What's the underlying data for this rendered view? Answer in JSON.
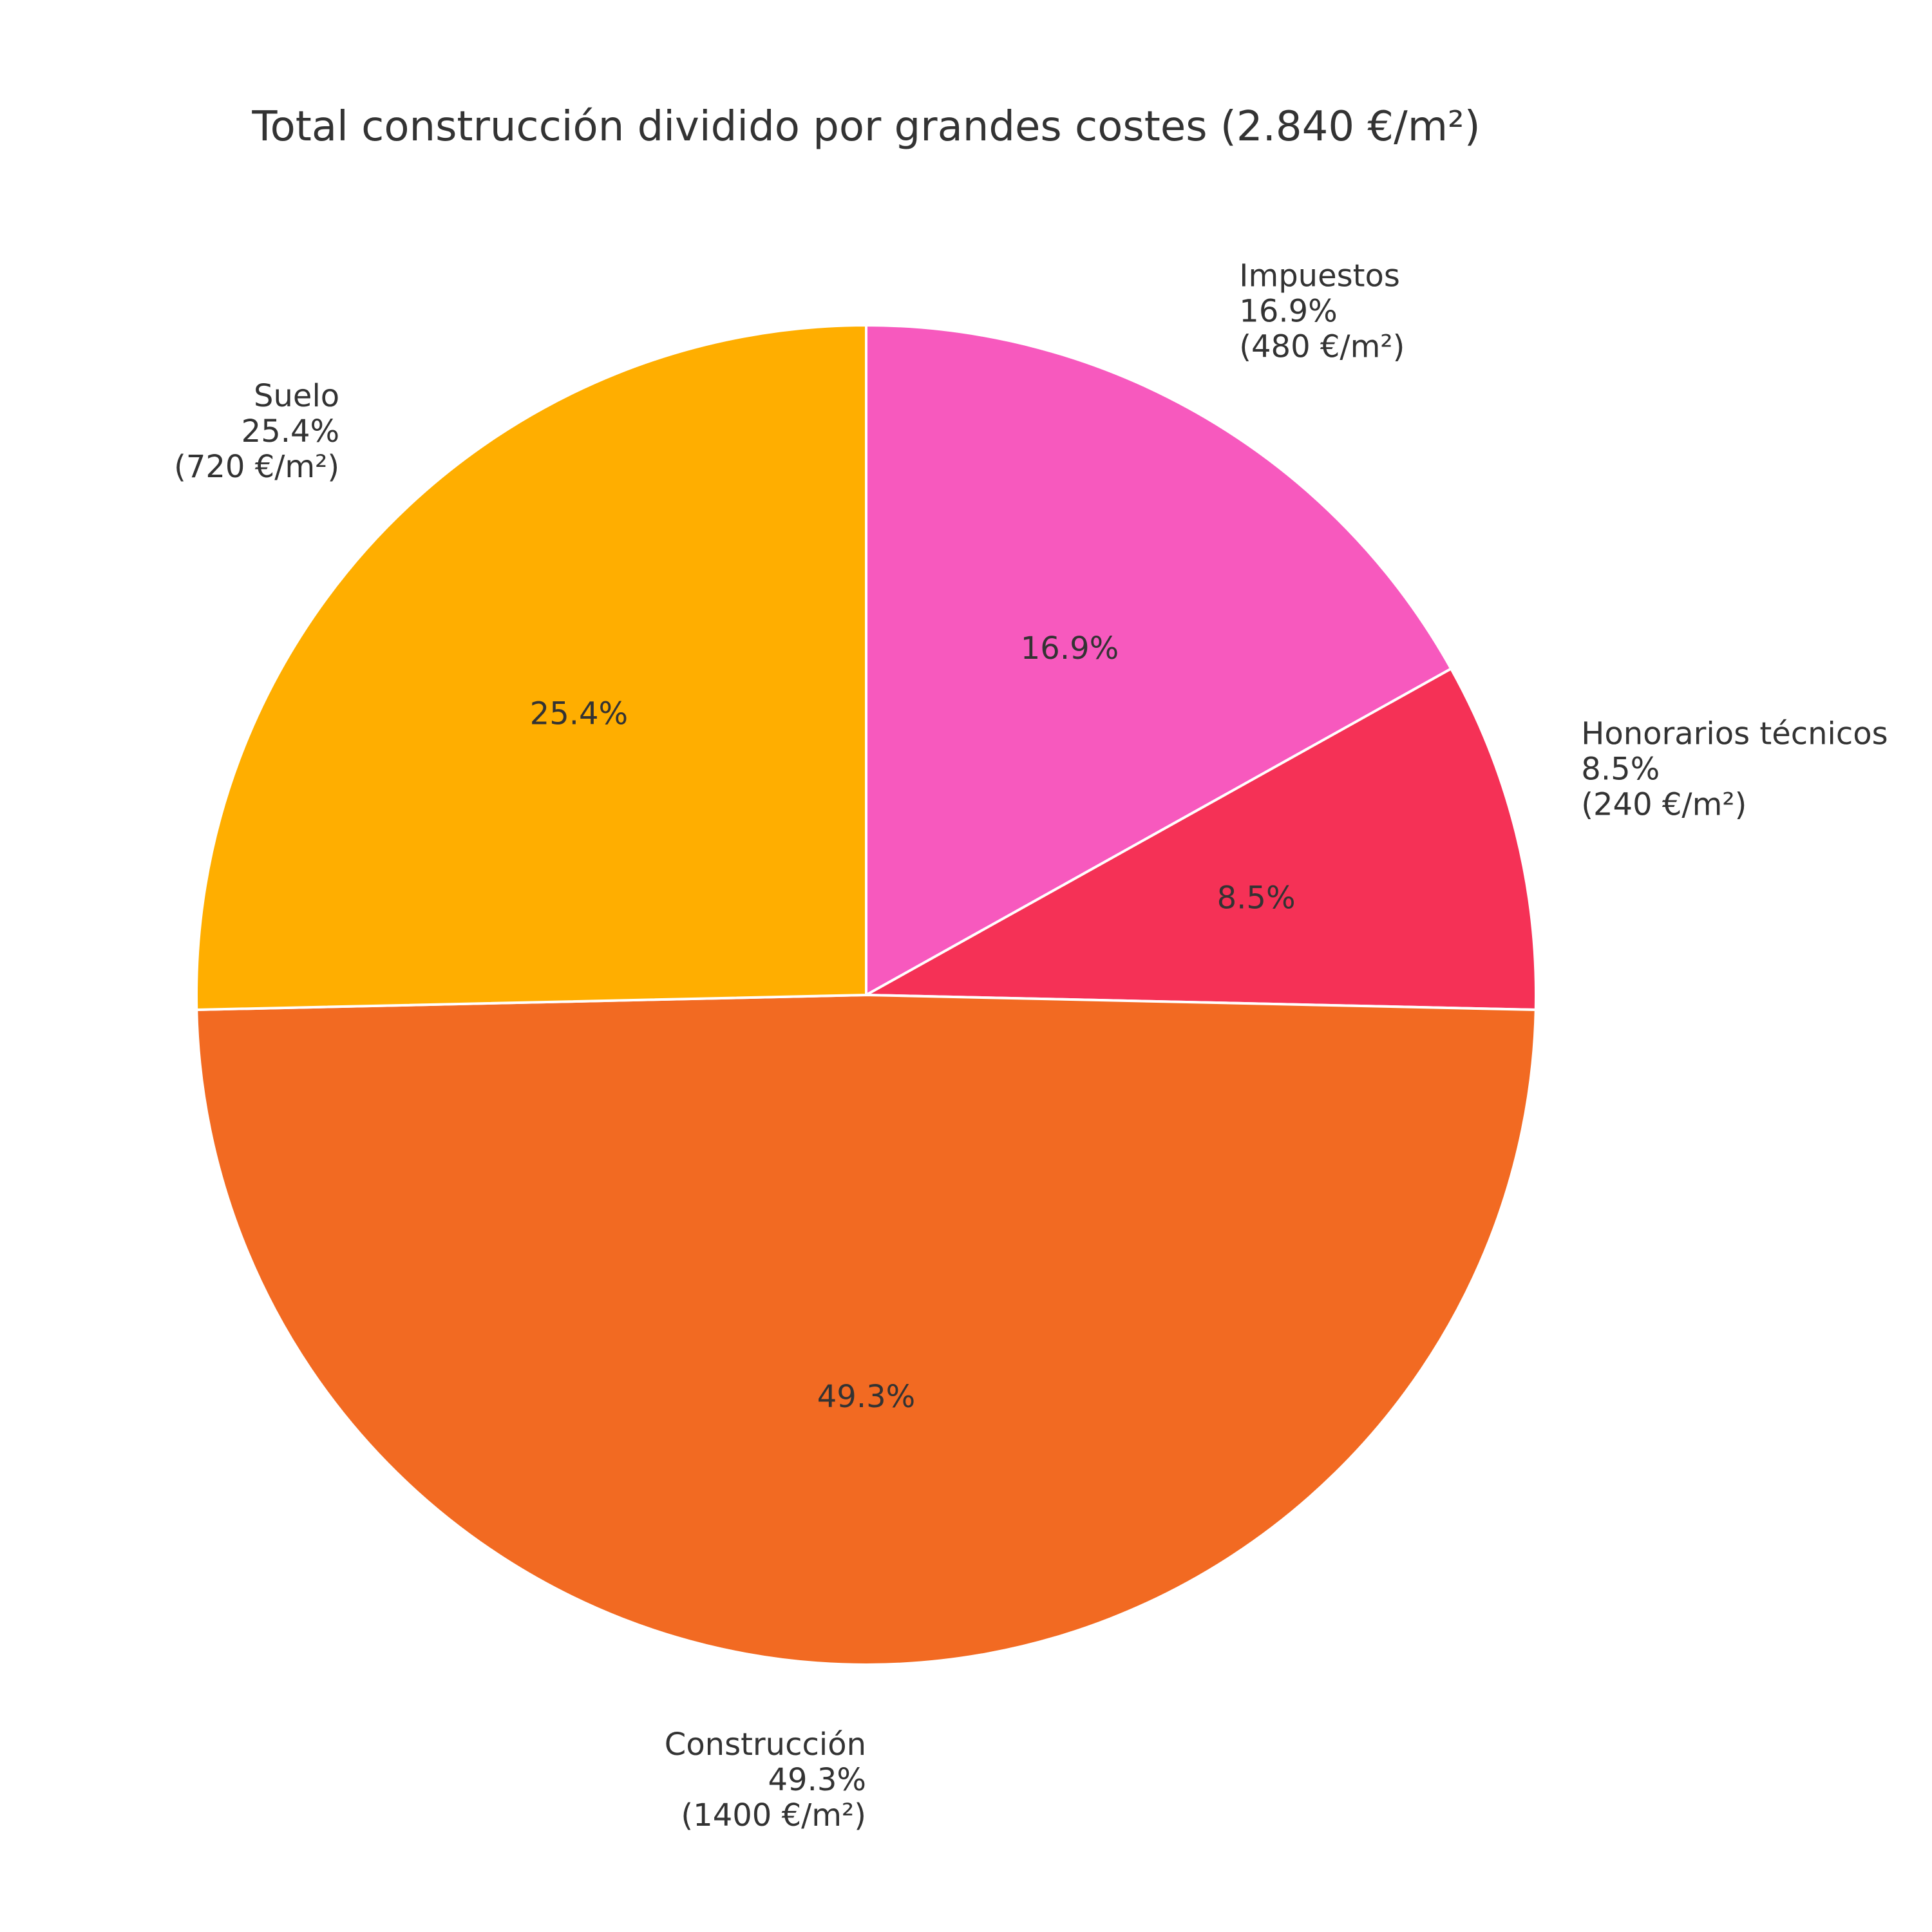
{
  "chart_data": {
    "type": "pie",
    "title": "Total construcción dividido por grandes costes (2.840 €/m²)",
    "start_angle_deg": 90,
    "direction": "clockwise",
    "slices": [
      {
        "category": "Impuestos",
        "value": 480,
        "percent_label": "16.9%",
        "amount_label": "(480 €/m²)",
        "color": "#F759BE"
      },
      {
        "category": "Honorarios técnicos",
        "value": 240,
        "percent_label": "8.5%",
        "amount_label": "(240 €/m²)",
        "color": "#F53156"
      },
      {
        "category": "Construcción",
        "value": 1400,
        "percent_label": "49.3%",
        "amount_label": "(1400 €/m²)",
        "color": "#F26A22"
      },
      {
        "category": "Suelo",
        "value": 720,
        "percent_label": "25.4%",
        "amount_label": "(720 €/m²)",
        "color": "#FFAE00"
      }
    ]
  }
}
